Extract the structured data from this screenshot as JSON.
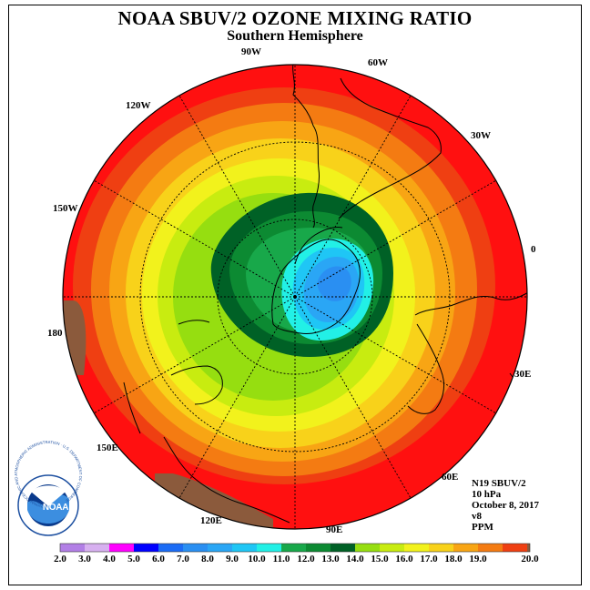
{
  "title": "NOAA SBUV/2 OZONE MIXING RATIO",
  "subtitle": "Southern Hemisphere",
  "longitude_labels": [
    "90W",
    "60W",
    "120W",
    "30W",
    "150W",
    "0",
    "180",
    "30E",
    "150E",
    "60E",
    "120E",
    "90E"
  ],
  "info": {
    "instrument": "N19 SBUV/2",
    "level": "10 hPa",
    "date": "October 8, 2017",
    "version": "v8",
    "units": "PPM"
  },
  "logo": {
    "text": "NOAA",
    "ring_text": "NATIONAL OCEANIC AND ATMOSPHERIC ADMINISTRATION · U.S. DEPARTMENT OF COMMERCE"
  },
  "colorbar": {
    "labels": [
      "2.0",
      "3.0",
      "4.0",
      "5.0",
      "6.0",
      "7.0",
      "8.0",
      "9.0",
      "10.0",
      "11.0",
      "12.0",
      "13.0",
      "14.0",
      "15.0",
      "16.0",
      "17.0",
      "18.0",
      "19.0",
      "20.0"
    ],
    "colors": [
      "#b27fe6",
      "#d7b0f0",
      "#ff00ff",
      "#0000ff",
      "#1b6cf5",
      "#2a8ff2",
      "#2aa6f5",
      "#1fc6f5",
      "#22f0e6",
      "#18a84a",
      "#0c8a32",
      "#006126",
      "#96de10",
      "#c8ec10",
      "#f2f21c",
      "#f8d21a",
      "#f8a514",
      "#f47b12",
      "#ef3f12",
      "#ff1010",
      "#8b5a3c"
    ]
  },
  "chart_data": {
    "type": "heatmap",
    "projection": "south-polar-stereographic",
    "variable": "ozone mixing ratio",
    "units": "PPM",
    "level": "10 hPa",
    "levels": [
      2,
      3,
      4,
      5,
      6,
      7,
      8,
      9,
      10,
      11,
      12,
      13,
      14,
      15,
      16,
      17,
      18,
      19,
      20
    ],
    "pattern": "low values (about 7–10 PPM) over Antarctica near the pole, increasing outward to 18–20 PPM at the hemisphere edge"
  }
}
